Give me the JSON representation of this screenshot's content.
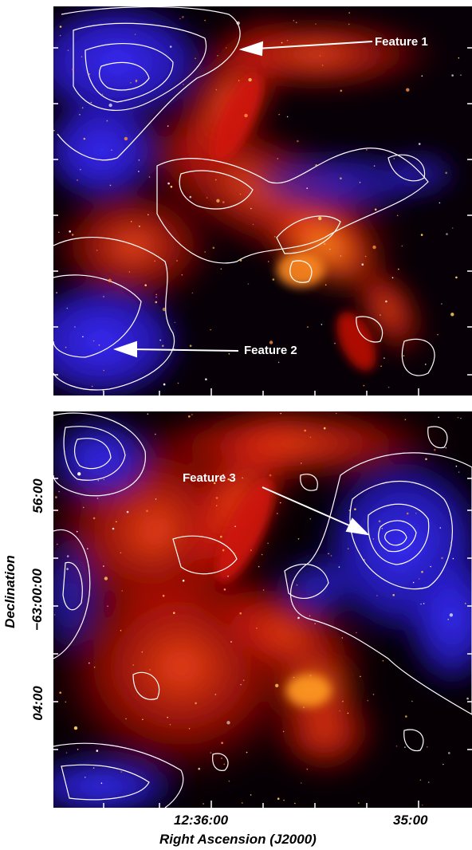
{
  "annotations": {
    "feature1": "Feature 1",
    "feature2": "Feature 2",
    "feature3": "Feature 3"
  },
  "axes": {
    "x_label": "Right Ascension (J2000)",
    "y_label": "Declination",
    "x_ticks": [
      "12:36:00",
      "35:00"
    ],
    "y_ticks": [
      "56:00",
      "−63:00:00",
      "04:00"
    ]
  },
  "colors": {
    "infrared_emission": "#e02010",
    "hydrogen_emission": "#2020ff",
    "contours": "#ffffff",
    "background": "#050005"
  }
}
